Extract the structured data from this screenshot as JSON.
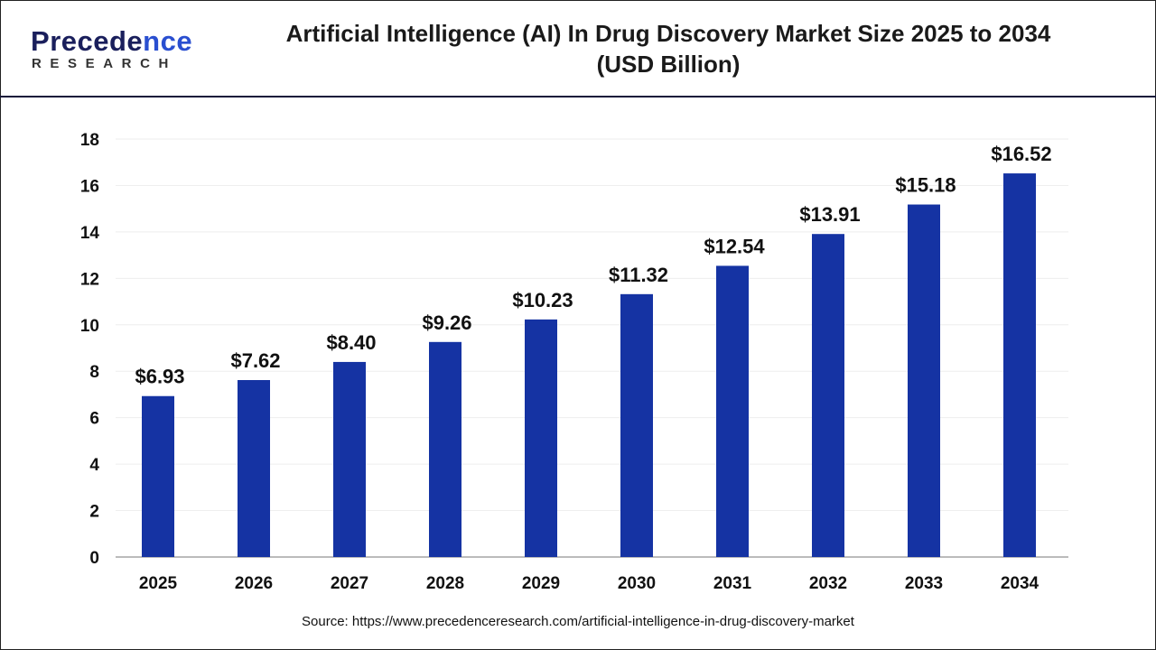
{
  "logo": {
    "line1_a": "P",
    "line1_b": "recede",
    "line1_c": "nce",
    "line2": "RESEARCH"
  },
  "title": "Artificial Intelligence (AI) In Drug Discovery Market Size 2025 to 2034",
  "subtitle": "(USD Billion)",
  "source": "Source: https://www.precedenceresearch.com/artificial-intelligence-in-drug-discovery-market",
  "chart_data": {
    "type": "bar",
    "title": "Artificial Intelligence (AI) In Drug Discovery Market Size 2025 to 2034 (USD Billion)",
    "categories": [
      "2025",
      "2026",
      "2027",
      "2028",
      "2029",
      "2030",
      "2031",
      "2032",
      "2033",
      "2034"
    ],
    "values": [
      6.93,
      7.62,
      8.4,
      9.26,
      10.23,
      11.32,
      12.54,
      13.91,
      15.18,
      16.52
    ],
    "data_labels": [
      "$6.93",
      "$7.62",
      "$8.40",
      "$9.26",
      "$10.23",
      "$11.32",
      "$12.54",
      "$13.91",
      "$15.18",
      "$16.52"
    ],
    "yticks": [
      0,
      2,
      4,
      6,
      8,
      10,
      12,
      14,
      16,
      18
    ],
    "ylim": [
      0,
      18
    ],
    "xlabel": "",
    "ylabel": "",
    "grid": true,
    "bar_color": "#1533a3"
  }
}
